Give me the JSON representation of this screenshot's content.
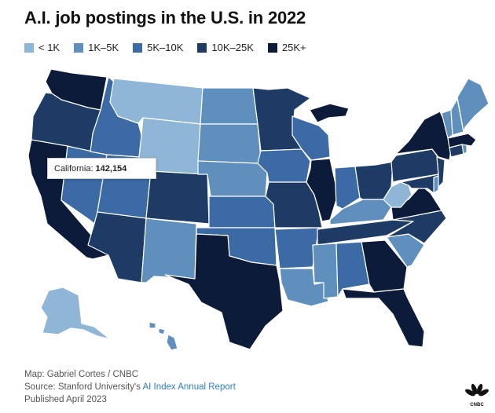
{
  "title": "A.I. job postings in the U.S. in 2022",
  "legend": [
    {
      "label": "< 1K",
      "color": "#8fb6d6"
    },
    {
      "label": "1K–5K",
      "color": "#5f8fbc"
    },
    {
      "label": "5K–10K",
      "color": "#3b6aa4"
    },
    {
      "label": "10K–25K",
      "color": "#1e3b66"
    },
    {
      "label": "25K+",
      "color": "#0d1b3a"
    }
  ],
  "tooltip": {
    "state": "California:",
    "value": "142,154"
  },
  "footer": {
    "credit": "Map: Gabriel Cortes / CNBC",
    "source_prefix": "Source: Stanford University's ",
    "source_link": "AI Index Annual Report",
    "published": "Published April 2023"
  },
  "logo_text": "CNBC",
  "map_data": {
    "WA": "25K+",
    "OR": "10K–25K",
    "CA": "25K+",
    "NV": "5K–10K",
    "ID": "5K–10K",
    "MT": "< 1K",
    "WY": "< 1K",
    "UT": "5K–10K",
    "AZ": "10K–25K",
    "CO": "10K–25K",
    "NM": "1K–5K",
    "ND": "1K–5K",
    "SD": "1K–5K",
    "NE": "1K–5K",
    "KS": "5K–10K",
    "OK": "5K–10K",
    "TX": "25K+",
    "MN": "10K–25K",
    "IA": "5K–10K",
    "MO": "10K–25K",
    "AR": "5K–10K",
    "LA": "1K–5K",
    "WI": "5K–10K",
    "IL": "25K+",
    "MI": "25K+",
    "IN": "5K–10K",
    "OH": "10K–25K",
    "KY": "1K–5K",
    "TN": "10K–25K",
    "MS": "1K–5K",
    "AL": "5K–10K",
    "GA": "25K+",
    "FL": "25K+",
    "SC": "1K–5K",
    "NC": "10K–25K",
    "VA": "25K+",
    "WV": "< 1K",
    "PA": "10K–25K",
    "NY": "25K+",
    "NJ": "10K–25K",
    "MD": "10K–25K",
    "DE": "1K–5K",
    "CT": "10K–25K",
    "RI": "1K–5K",
    "MA": "25K+",
    "VT": "1K–5K",
    "NH": "1K–5K",
    "ME": "1K–5K",
    "AK": "< 1K",
    "HI": "1K–5K"
  }
}
